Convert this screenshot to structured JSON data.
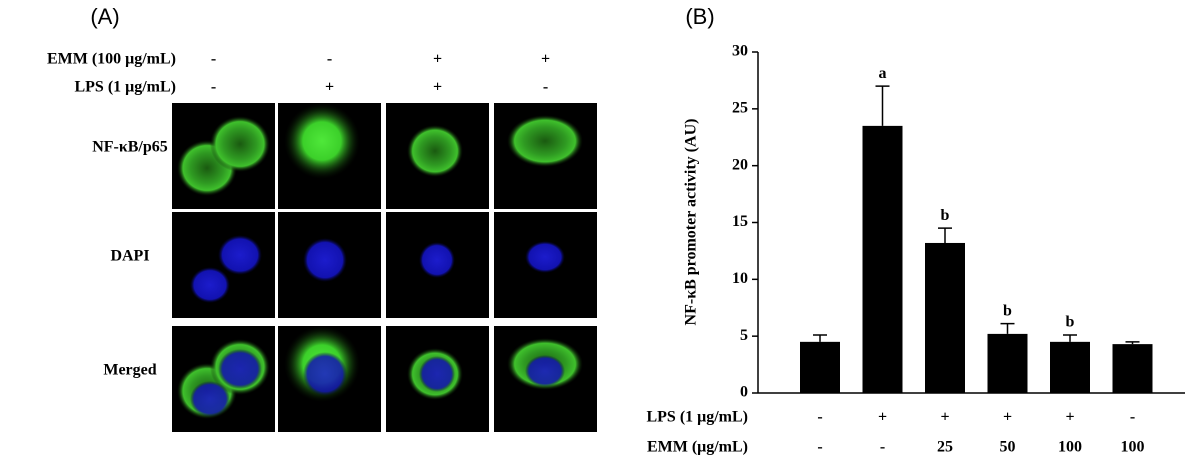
{
  "panel_a": {
    "label": "(A)",
    "conditions": [
      {
        "name": "EMM (100 μg/mL)",
        "labels": [
          "-",
          "-",
          "+",
          "+"
        ]
      },
      {
        "name": "LPS (1 μg/mL)",
        "labels": [
          "-",
          "+",
          "+",
          "-"
        ]
      }
    ],
    "rows": [
      "NF-κB/p65",
      "DAPI",
      "Merged"
    ]
  },
  "chart_data": {
    "type": "bar",
    "label": "(B)",
    "ylabel": "NF-κB promoter activity (AU)",
    "values": [
      4.5,
      23.5,
      13.2,
      5.2,
      4.5,
      4.3
    ],
    "errors": [
      0.6,
      3.5,
      1.3,
      0.9,
      0.6,
      0.2
    ],
    "significance": [
      null,
      "a",
      "b",
      "b",
      "b",
      null
    ],
    "color": "#000000",
    "ylim": [
      0,
      30
    ],
    "yticks": [
      0,
      5,
      10,
      15,
      20,
      25,
      30
    ],
    "condition_rows": [
      {
        "name": "LPS (1 μg/mL)",
        "labels": [
          "-",
          "+",
          "+",
          "+",
          "+",
          "-"
        ]
      },
      {
        "name": "EMM (μg/mL)",
        "labels": [
          "-",
          "-",
          "25",
          "50",
          "100",
          "100"
        ]
      }
    ]
  }
}
